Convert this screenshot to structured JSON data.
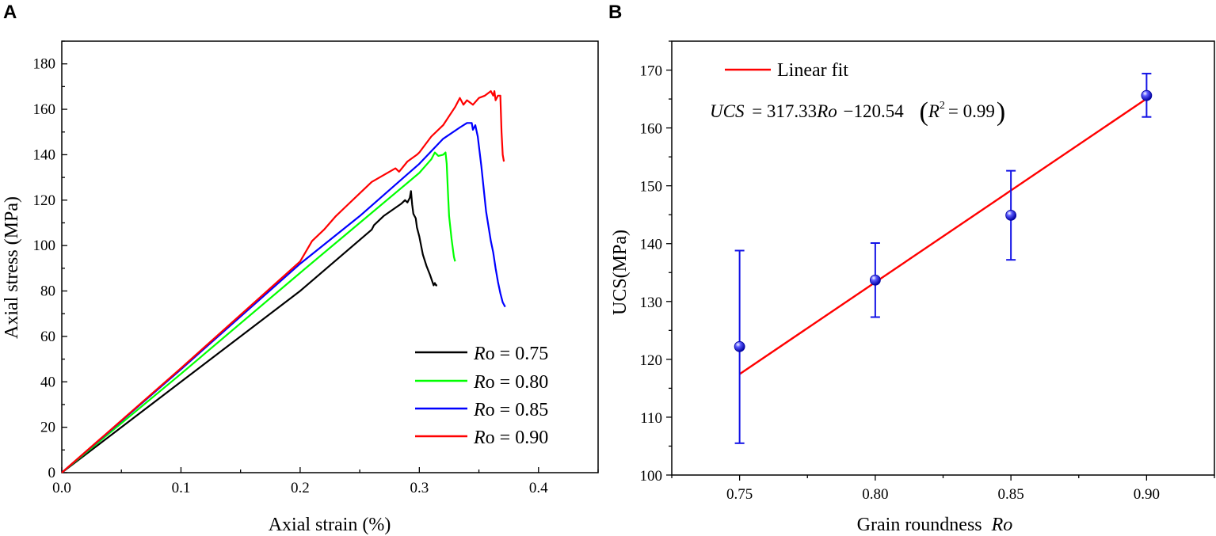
{
  "chart_data": [
    {
      "panel": "A",
      "type": "line",
      "xlabel": "Axial strain (%)",
      "ylabel": "Axial stress (MPa)",
      "xlim": [
        0,
        0.45
      ],
      "ylim": [
        0,
        190
      ],
      "xticks": [
        "0.0",
        "0.1",
        "0.2",
        "0.3",
        "0.4"
      ],
      "yticks": [
        "0",
        "20",
        "40",
        "60",
        "80",
        "100",
        "120",
        "140",
        "160",
        "180"
      ],
      "legend_position": "bottom-right",
      "series": [
        {
          "name_prefix": "R",
          "name_rest": "o = 0.75",
          "color": "#000000",
          "points": [
            [
              0,
              0
            ],
            [
              0.1,
              40
            ],
            [
              0.2,
              80
            ],
            [
              0.26,
              107
            ],
            [
              0.262,
              109
            ],
            [
              0.27,
              113
            ],
            [
              0.285,
              118.5
            ],
            [
              0.288,
              120
            ],
            [
              0.29,
              119
            ],
            [
              0.292,
              121
            ],
            [
              0.293,
              124
            ],
            [
              0.294,
              118
            ],
            [
              0.295,
              114
            ],
            [
              0.297,
              112
            ],
            [
              0.298,
              108
            ],
            [
              0.3,
              104
            ],
            [
              0.303,
              96
            ],
            [
              0.306,
              91
            ],
            [
              0.309,
              87
            ],
            [
              0.311,
              84
            ],
            [
              0.312,
              82.5
            ],
            [
              0.313,
              83.5
            ],
            [
              0.314,
              82.5
            ],
            [
              0.315,
              82.5
            ]
          ]
        },
        {
          "name_prefix": "R",
          "name_rest": "o = 0.80",
          "color": "#00ff00",
          "points": [
            [
              0,
              0
            ],
            [
              0.1,
              43.5
            ],
            [
              0.2,
              88
            ],
            [
              0.25,
              110
            ],
            [
              0.3,
              132
            ],
            [
              0.31,
              138
            ],
            [
              0.313,
              141
            ],
            [
              0.316,
              139.5
            ],
            [
              0.32,
              140
            ],
            [
              0.322,
              141
            ],
            [
              0.323,
              136
            ],
            [
              0.324,
              124
            ],
            [
              0.325,
              113
            ],
            [
              0.327,
              103
            ],
            [
              0.329,
              95
            ],
            [
              0.33,
              93
            ]
          ]
        },
        {
          "name_prefix": "R",
          "name_rest": "o = 0.85",
          "color": "#0000ff",
          "points": [
            [
              0,
              0
            ],
            [
              0.1,
              45.5
            ],
            [
              0.2,
              92
            ],
            [
              0.25,
              113
            ],
            [
              0.3,
              136
            ],
            [
              0.32,
              147
            ],
            [
              0.334,
              152
            ],
            [
              0.34,
              154
            ],
            [
              0.344,
              154
            ],
            [
              0.345,
              151
            ],
            [
              0.347,
              153
            ],
            [
              0.349,
              148
            ],
            [
              0.352,
              135
            ],
            [
              0.356,
              115
            ],
            [
              0.36,
              102
            ],
            [
              0.362,
              97
            ],
            [
              0.364,
              90
            ],
            [
              0.366,
              84
            ],
            [
              0.368,
              79
            ],
            [
              0.37,
              75
            ],
            [
              0.372,
              73
            ]
          ]
        },
        {
          "name_prefix": "R",
          "name_rest": "o = 0.90",
          "color": "#ff0000",
          "points": [
            [
              0,
              0
            ],
            [
              0.1,
              46
            ],
            [
              0.2,
              93
            ],
            [
              0.21,
              102
            ],
            [
              0.22,
              107
            ],
            [
              0.23,
              113
            ],
            [
              0.24,
              118
            ],
            [
              0.25,
              123
            ],
            [
              0.26,
              128
            ],
            [
              0.27,
              131
            ],
            [
              0.28,
              134
            ],
            [
              0.283,
              132.5
            ],
            [
              0.29,
              137
            ],
            [
              0.298,
              140
            ],
            [
              0.3,
              141
            ],
            [
              0.31,
              148
            ],
            [
              0.32,
              153
            ],
            [
              0.325,
              157
            ],
            [
              0.33,
              161
            ],
            [
              0.334,
              165
            ],
            [
              0.337,
              162
            ],
            [
              0.34,
              164
            ],
            [
              0.345,
              162
            ],
            [
              0.35,
              165
            ],
            [
              0.355,
              166
            ],
            [
              0.36,
              168
            ],
            [
              0.362,
              166
            ],
            [
              0.363,
              168
            ],
            [
              0.364,
              164
            ],
            [
              0.366,
              166
            ],
            [
              0.368,
              166
            ],
            [
              0.369,
              150
            ],
            [
              0.37,
              140
            ],
            [
              0.371,
              137
            ]
          ]
        }
      ]
    },
    {
      "panel": "B",
      "type": "scatter",
      "xlabel_text": "Grain roundness",
      "xlabel_var": "Ro",
      "ylabel": "UCS(MPa)",
      "xlim": [
        0.725,
        0.925
      ],
      "ylim": [
        100,
        175
      ],
      "xticks": [
        "0.75",
        "0.80",
        "0.85",
        "0.90"
      ],
      "yticks": [
        "100",
        "110",
        "120",
        "130",
        "140",
        "150",
        "160",
        "170"
      ],
      "points": {
        "x": [
          0.75,
          0.8,
          0.85,
          0.9
        ],
        "y": [
          122.2,
          133.7,
          144.9,
          165.6
        ],
        "err_low": [
          105.5,
          127.3,
          137.2,
          161.9
        ],
        "err_high": [
          138.8,
          140.1,
          152.6,
          169.4
        ],
        "color": "#1414e6"
      },
      "fit": {
        "name": "Linear fit",
        "slope": 317.33,
        "intercept": -120.54,
        "x_range": [
          0.75,
          0.9
        ],
        "color": "#ff0000"
      },
      "equation": {
        "lhs": "UCS",
        "coef": "= 317.33",
        "var": "Ro",
        "const": "−120.54",
        "r2_var": "R",
        "r2_exp": "2",
        "r2_val": "= 0.99"
      }
    }
  ]
}
